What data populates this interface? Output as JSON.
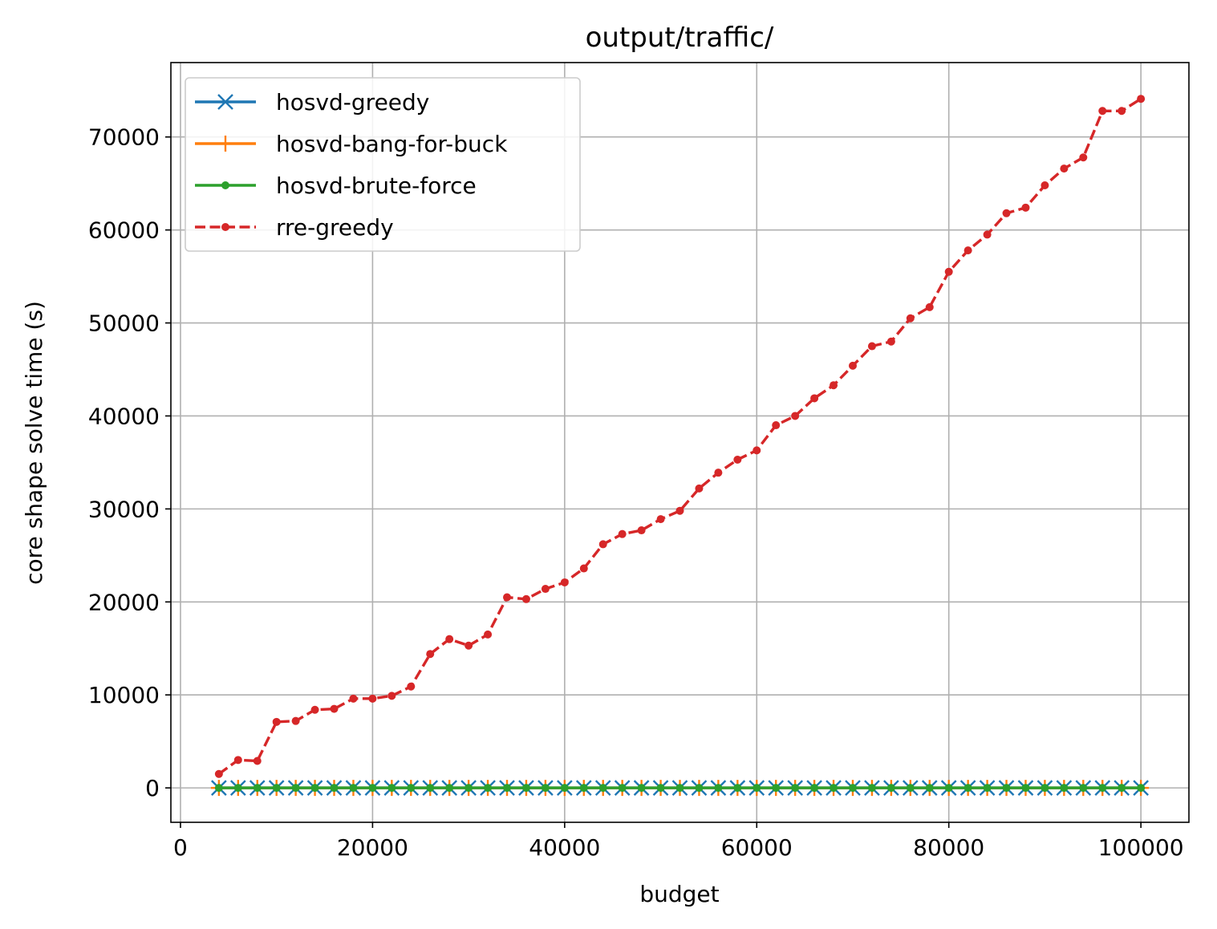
{
  "chart_data": {
    "type": "line",
    "title": "output/traffic/",
    "xlabel": "budget",
    "ylabel": "core shape solve time (s)",
    "xlim": [
      -1000,
      105000
    ],
    "ylim": [
      -3700,
      78000
    ],
    "xticks": [
      0,
      20000,
      40000,
      60000,
      80000,
      100000
    ],
    "yticks": [
      0,
      10000,
      20000,
      30000,
      40000,
      50000,
      60000,
      70000
    ],
    "grid": true,
    "legend_position": "upper-left",
    "x": [
      4000,
      6000,
      8000,
      10000,
      12000,
      14000,
      16000,
      18000,
      20000,
      22000,
      24000,
      26000,
      28000,
      30000,
      32000,
      34000,
      36000,
      38000,
      40000,
      42000,
      44000,
      46000,
      48000,
      50000,
      52000,
      54000,
      56000,
      58000,
      60000,
      62000,
      64000,
      66000,
      68000,
      70000,
      72000,
      74000,
      76000,
      78000,
      80000,
      82000,
      84000,
      86000,
      88000,
      90000,
      92000,
      94000,
      96000,
      98000,
      100000
    ],
    "series": [
      {
        "name": "hosvd-greedy",
        "color": "#1f77b4",
        "linestyle": "solid",
        "marker": "x",
        "values": [
          0,
          0,
          0,
          0,
          0,
          0,
          0,
          0,
          0,
          0,
          0,
          0,
          0,
          0,
          0,
          0,
          0,
          0,
          0,
          0,
          0,
          0,
          0,
          0,
          0,
          0,
          0,
          0,
          0,
          0,
          0,
          0,
          0,
          0,
          0,
          0,
          0,
          0,
          0,
          0,
          0,
          0,
          0,
          0,
          0,
          0,
          0,
          0,
          0
        ]
      },
      {
        "name": "hosvd-bang-for-buck",
        "color": "#ff7f0e",
        "linestyle": "solid",
        "marker": "+",
        "values": [
          0,
          0,
          0,
          0,
          0,
          0,
          0,
          0,
          0,
          0,
          0,
          0,
          0,
          0,
          0,
          0,
          0,
          0,
          0,
          0,
          0,
          0,
          0,
          0,
          0,
          0,
          0,
          0,
          0,
          0,
          0,
          0,
          0,
          0,
          0,
          0,
          0,
          0,
          0,
          0,
          0,
          0,
          0,
          0,
          0,
          0,
          0,
          0,
          0
        ]
      },
      {
        "name": "hosvd-brute-force",
        "color": "#2ca02c",
        "linestyle": "solid",
        "marker": "dot",
        "values": [
          0,
          0,
          0,
          0,
          0,
          0,
          0,
          0,
          0,
          0,
          0,
          0,
          0,
          0,
          0,
          0,
          0,
          0,
          0,
          0,
          0,
          0,
          0,
          0,
          0,
          0,
          0,
          0,
          0,
          0,
          0,
          0,
          0,
          0,
          0,
          0,
          0,
          0,
          0,
          0,
          0,
          0,
          0,
          0,
          0,
          0,
          0,
          0,
          0
        ]
      },
      {
        "name": "rre-greedy",
        "color": "#d62728",
        "linestyle": "dashed",
        "marker": "dot",
        "values": [
          1500,
          3000,
          2900,
          7100,
          7200,
          8400,
          8500,
          9600,
          9600,
          9900,
          10900,
          14400,
          16000,
          15300,
          16500,
          20500,
          20300,
          21400,
          22100,
          23600,
          26200,
          27300,
          27700,
          28900,
          29800,
          32200,
          33900,
          35300,
          36300,
          39000,
          40000,
          41900,
          43300,
          45400,
          47500,
          48000,
          50500,
          51700,
          55500,
          57800,
          59500,
          61800,
          62400,
          64800,
          66600,
          67800,
          72800,
          72800,
          74100
        ]
      }
    ]
  }
}
